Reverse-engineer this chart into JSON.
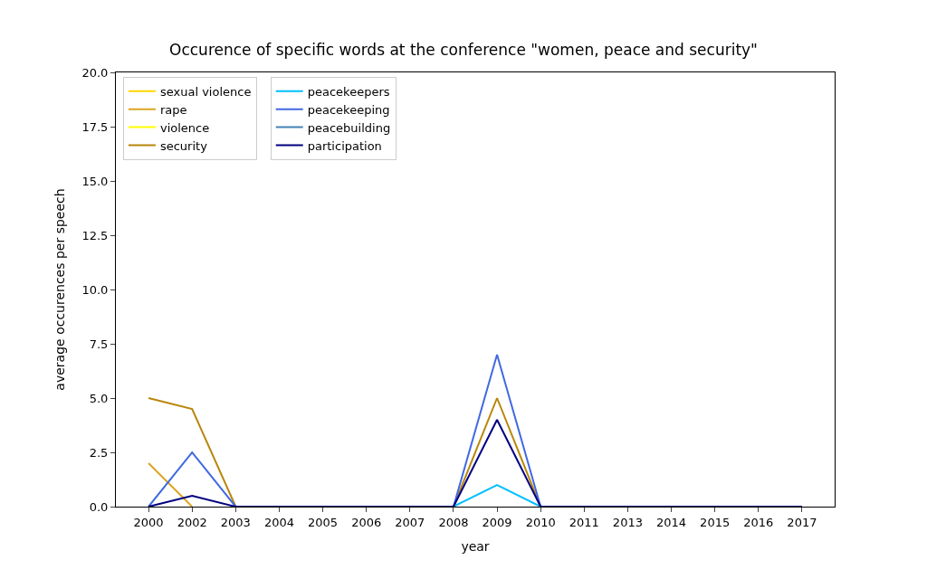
{
  "chart_data": {
    "type": "line",
    "title": "Occurence of specific words at the conference \"women, peace and security\"",
    "xlabel": "year",
    "ylabel": "average occurences per speech",
    "categories": [
      "2000",
      "2002",
      "2003",
      "2004",
      "2005",
      "2006",
      "2007",
      "2008",
      "2009",
      "2010",
      "2011",
      "2013",
      "2014",
      "2015",
      "2016",
      "2017"
    ],
    "series": [
      {
        "name": "sexual violence",
        "color": "#ffd700",
        "values": [
          null,
          null,
          null,
          null,
          null,
          null,
          null,
          null,
          null,
          null,
          null,
          null,
          null,
          null,
          null,
          null
        ]
      },
      {
        "name": "rape",
        "color": "#daa520",
        "values": [
          2,
          0,
          null,
          null,
          null,
          null,
          null,
          null,
          null,
          null,
          null,
          null,
          null,
          null,
          null,
          null
        ]
      },
      {
        "name": "violence",
        "color": "#ffff00",
        "values": [
          null,
          null,
          null,
          null,
          null,
          null,
          null,
          null,
          null,
          null,
          null,
          null,
          null,
          null,
          null,
          null
        ]
      },
      {
        "name": "security",
        "color": "#b8860b",
        "values": [
          5,
          4.5,
          0,
          null,
          null,
          null,
          null,
          0,
          5,
          0,
          null,
          null,
          null,
          null,
          null,
          null
        ]
      },
      {
        "name": "peacekeepers",
        "color": "#00bfff",
        "values": [
          null,
          null,
          null,
          null,
          null,
          null,
          null,
          0,
          1,
          0,
          null,
          null,
          null,
          null,
          null,
          null
        ]
      },
      {
        "name": "peacekeeping",
        "color": "#4169e1",
        "values": [
          0,
          2.5,
          0,
          null,
          null,
          null,
          null,
          0,
          7,
          0,
          null,
          null,
          null,
          null,
          null,
          null
        ]
      },
      {
        "name": "peacebuilding",
        "color": "#4682b4",
        "values": [
          null,
          null,
          null,
          null,
          null,
          null,
          null,
          null,
          null,
          null,
          null,
          null,
          null,
          null,
          null,
          null
        ]
      },
      {
        "name": "participation",
        "color": "#000080",
        "values": [
          0,
          0.5,
          0,
          0,
          0,
          0,
          0,
          0,
          4,
          0,
          0,
          0,
          0,
          0,
          0,
          0
        ]
      }
    ],
    "ylim": [
      0,
      20
    ],
    "yticks": [
      {
        "value": 0,
        "label": "0.0"
      },
      {
        "value": 2.5,
        "label": "2.5"
      },
      {
        "value": 5,
        "label": "5.0"
      },
      {
        "value": 7.5,
        "label": "7.5"
      },
      {
        "value": 10,
        "label": "10.0"
      },
      {
        "value": 12.5,
        "label": "12.5"
      },
      {
        "value": 15,
        "label": "15.0"
      },
      {
        "value": 17.5,
        "label": "17.5"
      },
      {
        "value": 20,
        "label": "20.0"
      }
    ],
    "legend": "top left",
    "grid": false,
    "marker": "none",
    "line_style": "solid"
  }
}
